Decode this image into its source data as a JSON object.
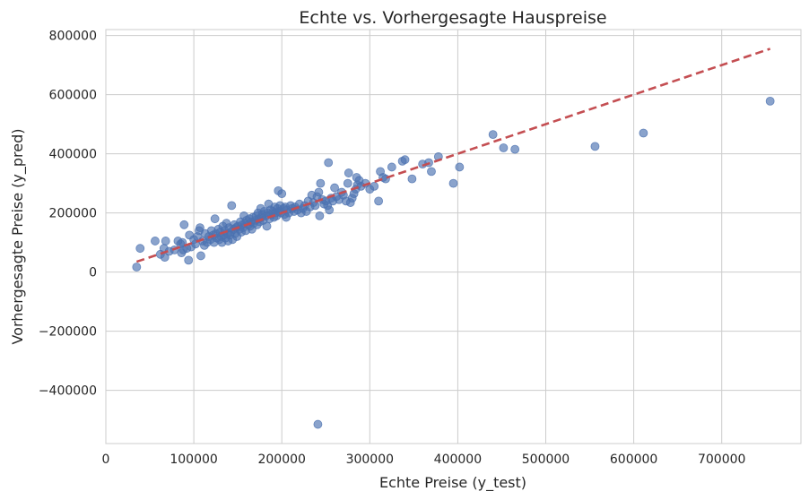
{
  "chart_data": {
    "type": "scatter",
    "title": "Echte vs. Vorhergesagte Hauspreise",
    "xlabel": "Echte Preise (y_test)",
    "ylabel": "Vorhergesagte Preise (y_pred)",
    "xlim": [
      0,
      790000
    ],
    "ylim": [
      -580000,
      820000
    ],
    "xticks": [
      0,
      100000,
      200000,
      300000,
      400000,
      500000,
      600000,
      700000
    ],
    "xtick_labels": [
      "0",
      "100000",
      "200000",
      "300000",
      "400000",
      "500000",
      "600000",
      "700000"
    ],
    "yticks": [
      -400000,
      -200000,
      0,
      200000,
      400000,
      600000,
      800000
    ],
    "ytick_labels": [
      "−400000",
      "−200000",
      "0",
      "200000",
      "400000",
      "600000",
      "800000"
    ],
    "grid": true,
    "point_color": "#4C72B0",
    "line_color": "#C44E52",
    "reference_line": {
      "style": "dashed",
      "x": [
        35000,
        755000
      ],
      "y": [
        35000,
        755000
      ]
    },
    "points": [
      [
        35000,
        17000
      ],
      [
        39000,
        80000
      ],
      [
        56000,
        105000
      ],
      [
        62000,
        60000
      ],
      [
        66000,
        80000
      ],
      [
        67000,
        50000
      ],
      [
        68000,
        105000
      ],
      [
        72000,
        70000
      ],
      [
        78000,
        75000
      ],
      [
        82000,
        105000
      ],
      [
        85000,
        95000
      ],
      [
        86000,
        65000
      ],
      [
        87000,
        100000
      ],
      [
        88000,
        75000
      ],
      [
        89000,
        160000
      ],
      [
        92000,
        80000
      ],
      [
        94000,
        40000
      ],
      [
        95000,
        125000
      ],
      [
        97000,
        85000
      ],
      [
        100000,
        110000
      ],
      [
        102000,
        95000
      ],
      [
        104000,
        120000
      ],
      [
        106000,
        140000
      ],
      [
        107000,
        150000
      ],
      [
        108000,
        55000
      ],
      [
        110000,
        105000
      ],
      [
        112000,
        90000
      ],
      [
        113000,
        130000
      ],
      [
        115000,
        100000
      ],
      [
        117000,
        120000
      ],
      [
        119000,
        110000
      ],
      [
        120000,
        140000
      ],
      [
        122000,
        125000
      ],
      [
        123000,
        100000
      ],
      [
        124000,
        180000
      ],
      [
        125000,
        130000
      ],
      [
        126000,
        115000
      ],
      [
        128000,
        145000
      ],
      [
        129000,
        110000
      ],
      [
        130000,
        135000
      ],
      [
        131000,
        120000
      ],
      [
        132000,
        100000
      ],
      [
        133000,
        155000
      ],
      [
        134000,
        125000
      ],
      [
        135000,
        140000
      ],
      [
        136000,
        115000
      ],
      [
        137000,
        165000
      ],
      [
        138000,
        130000
      ],
      [
        139000,
        105000
      ],
      [
        140000,
        150000
      ],
      [
        141000,
        125000
      ],
      [
        142000,
        135000
      ],
      [
        143000,
        225000
      ],
      [
        144000,
        110000
      ],
      [
        145000,
        145000
      ],
      [
        146000,
        160000
      ],
      [
        147000,
        130000
      ],
      [
        148000,
        150000
      ],
      [
        149000,
        120000
      ],
      [
        150000,
        155000
      ],
      [
        152000,
        145000
      ],
      [
        153000,
        170000
      ],
      [
        154000,
        135000
      ],
      [
        155000,
        160000
      ],
      [
        156000,
        150000
      ],
      [
        157000,
        190000
      ],
      [
        158000,
        165000
      ],
      [
        159000,
        140000
      ],
      [
        160000,
        175000
      ],
      [
        162000,
        160000
      ],
      [
        163000,
        180000
      ],
      [
        164000,
        155000
      ],
      [
        165000,
        170000
      ],
      [
        166000,
        145000
      ],
      [
        167000,
        185000
      ],
      [
        168000,
        165000
      ],
      [
        170000,
        175000
      ],
      [
        171000,
        190000
      ],
      [
        172000,
        160000
      ],
      [
        173000,
        200000
      ],
      [
        174000,
        180000
      ],
      [
        175000,
        170000
      ],
      [
        176000,
        215000
      ],
      [
        177000,
        185000
      ],
      [
        178000,
        195000
      ],
      [
        179000,
        175000
      ],
      [
        180000,
        205000
      ],
      [
        182000,
        190000
      ],
      [
        183000,
        155000
      ],
      [
        184000,
        200000
      ],
      [
        185000,
        230000
      ],
      [
        186000,
        180000
      ],
      [
        187000,
        210000
      ],
      [
        188000,
        195000
      ],
      [
        190000,
        205000
      ],
      [
        191000,
        185000
      ],
      [
        192000,
        220000
      ],
      [
        193000,
        200000
      ],
      [
        194000,
        190000
      ],
      [
        195000,
        215000
      ],
      [
        196000,
        275000
      ],
      [
        197000,
        205000
      ],
      [
        198000,
        225000
      ],
      [
        199000,
        200000
      ],
      [
        200000,
        265000
      ],
      [
        202000,
        215000
      ],
      [
        203000,
        195000
      ],
      [
        204000,
        220000
      ],
      [
        205000,
        185000
      ],
      [
        206000,
        210000
      ],
      [
        208000,
        200000
      ],
      [
        210000,
        225000
      ],
      [
        212000,
        215000
      ],
      [
        214000,
        205000
      ],
      [
        215000,
        220000
      ],
      [
        218000,
        210000
      ],
      [
        220000,
        230000
      ],
      [
        222000,
        200000
      ],
      [
        224000,
        215000
      ],
      [
        226000,
        225000
      ],
      [
        228000,
        205000
      ],
      [
        230000,
        240000
      ],
      [
        232000,
        220000
      ],
      [
        234000,
        260000
      ],
      [
        236000,
        235000
      ],
      [
        238000,
        225000
      ],
      [
        240000,
        255000
      ],
      [
        241000,
        -515000
      ],
      [
        242000,
        270000
      ],
      [
        243000,
        190000
      ],
      [
        244000,
        300000
      ],
      [
        246000,
        245000
      ],
      [
        248000,
        230000
      ],
      [
        250000,
        240000
      ],
      [
        252000,
        225000
      ],
      [
        253000,
        370000
      ],
      [
        254000,
        210000
      ],
      [
        256000,
        250000
      ],
      [
        258000,
        240000
      ],
      [
        260000,
        285000
      ],
      [
        262000,
        255000
      ],
      [
        265000,
        245000
      ],
      [
        268000,
        270000
      ],
      [
        270000,
        260000
      ],
      [
        273000,
        240000
      ],
      [
        275000,
        300000
      ],
      [
        276000,
        335000
      ],
      [
        278000,
        235000
      ],
      [
        280000,
        250000
      ],
      [
        282000,
        265000
      ],
      [
        284000,
        280000
      ],
      [
        285000,
        320000
      ],
      [
        286000,
        295000
      ],
      [
        288000,
        310000
      ],
      [
        290000,
        290000
      ],
      [
        295000,
        300000
      ],
      [
        300000,
        280000
      ],
      [
        305000,
        290000
      ],
      [
        310000,
        240000
      ],
      [
        312000,
        340000
      ],
      [
        315000,
        320000
      ],
      [
        318000,
        315000
      ],
      [
        325000,
        355000
      ],
      [
        337000,
        375000
      ],
      [
        340000,
        380000
      ],
      [
        348000,
        315000
      ],
      [
        360000,
        365000
      ],
      [
        367000,
        370000
      ],
      [
        370000,
        340000
      ],
      [
        378000,
        390000
      ],
      [
        395000,
        300000
      ],
      [
        402000,
        355000
      ],
      [
        440000,
        465000
      ],
      [
        452000,
        420000
      ],
      [
        465000,
        415000
      ],
      [
        556000,
        425000
      ],
      [
        611000,
        470000
      ],
      [
        755000,
        578000
      ]
    ]
  }
}
